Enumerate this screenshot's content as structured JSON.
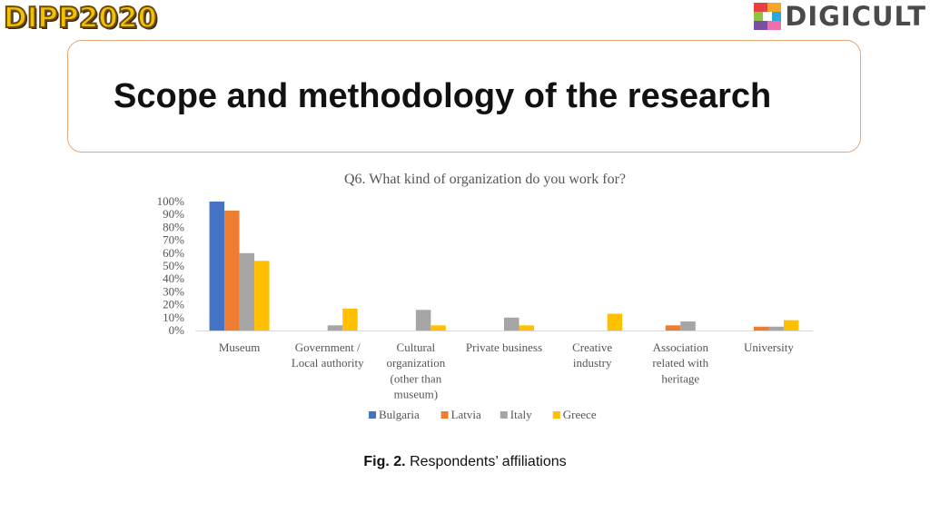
{
  "header": {
    "left_logo_text": "DIPP2020",
    "right_logo_text": "DIGICULT",
    "right_logo_colors": [
      "#e8403a",
      "#f5a623",
      "#8bc53f",
      "#2aa9e0",
      "#7b4fa0",
      "#f06eaa"
    ]
  },
  "slide": {
    "title": "Scope and methodology of the research"
  },
  "caption": {
    "label": "Fig. 2.",
    "text": "Respondents’ affiliations"
  },
  "chart_data": {
    "type": "bar",
    "title": "Q6. What kind of organization do you work for?",
    "categories": [
      [
        "Museum"
      ],
      [
        "Government /",
        "Local authority"
      ],
      [
        "Cultural",
        "organization",
        "(other than",
        "museum)"
      ],
      [
        "Private business"
      ],
      [
        "Creative",
        "industry"
      ],
      [
        "Association",
        "related with",
        "heritage"
      ],
      [
        "University"
      ]
    ],
    "yticks": [
      "0%",
      "10%",
      "20%",
      "30%",
      "40%",
      "50%",
      "60%",
      "70%",
      "80%",
      "90%",
      "100%"
    ],
    "ylim": [
      0,
      100
    ],
    "legend_position": "bottom",
    "grid": false,
    "series": [
      {
        "name": "Bulgaria",
        "color": "#4472c4",
        "values": [
          100,
          0,
          0,
          0,
          0,
          0,
          0
        ]
      },
      {
        "name": "Latvia",
        "color": "#ed7d31",
        "values": [
          93,
          0,
          0,
          0,
          0,
          4,
          3
        ]
      },
      {
        "name": "Italy",
        "color": "#a5a5a5",
        "values": [
          60,
          4,
          16,
          10,
          0,
          7,
          3
        ]
      },
      {
        "name": "Greece",
        "color": "#ffc000",
        "values": [
          54,
          17,
          4,
          4,
          13,
          0,
          8
        ]
      }
    ]
  }
}
